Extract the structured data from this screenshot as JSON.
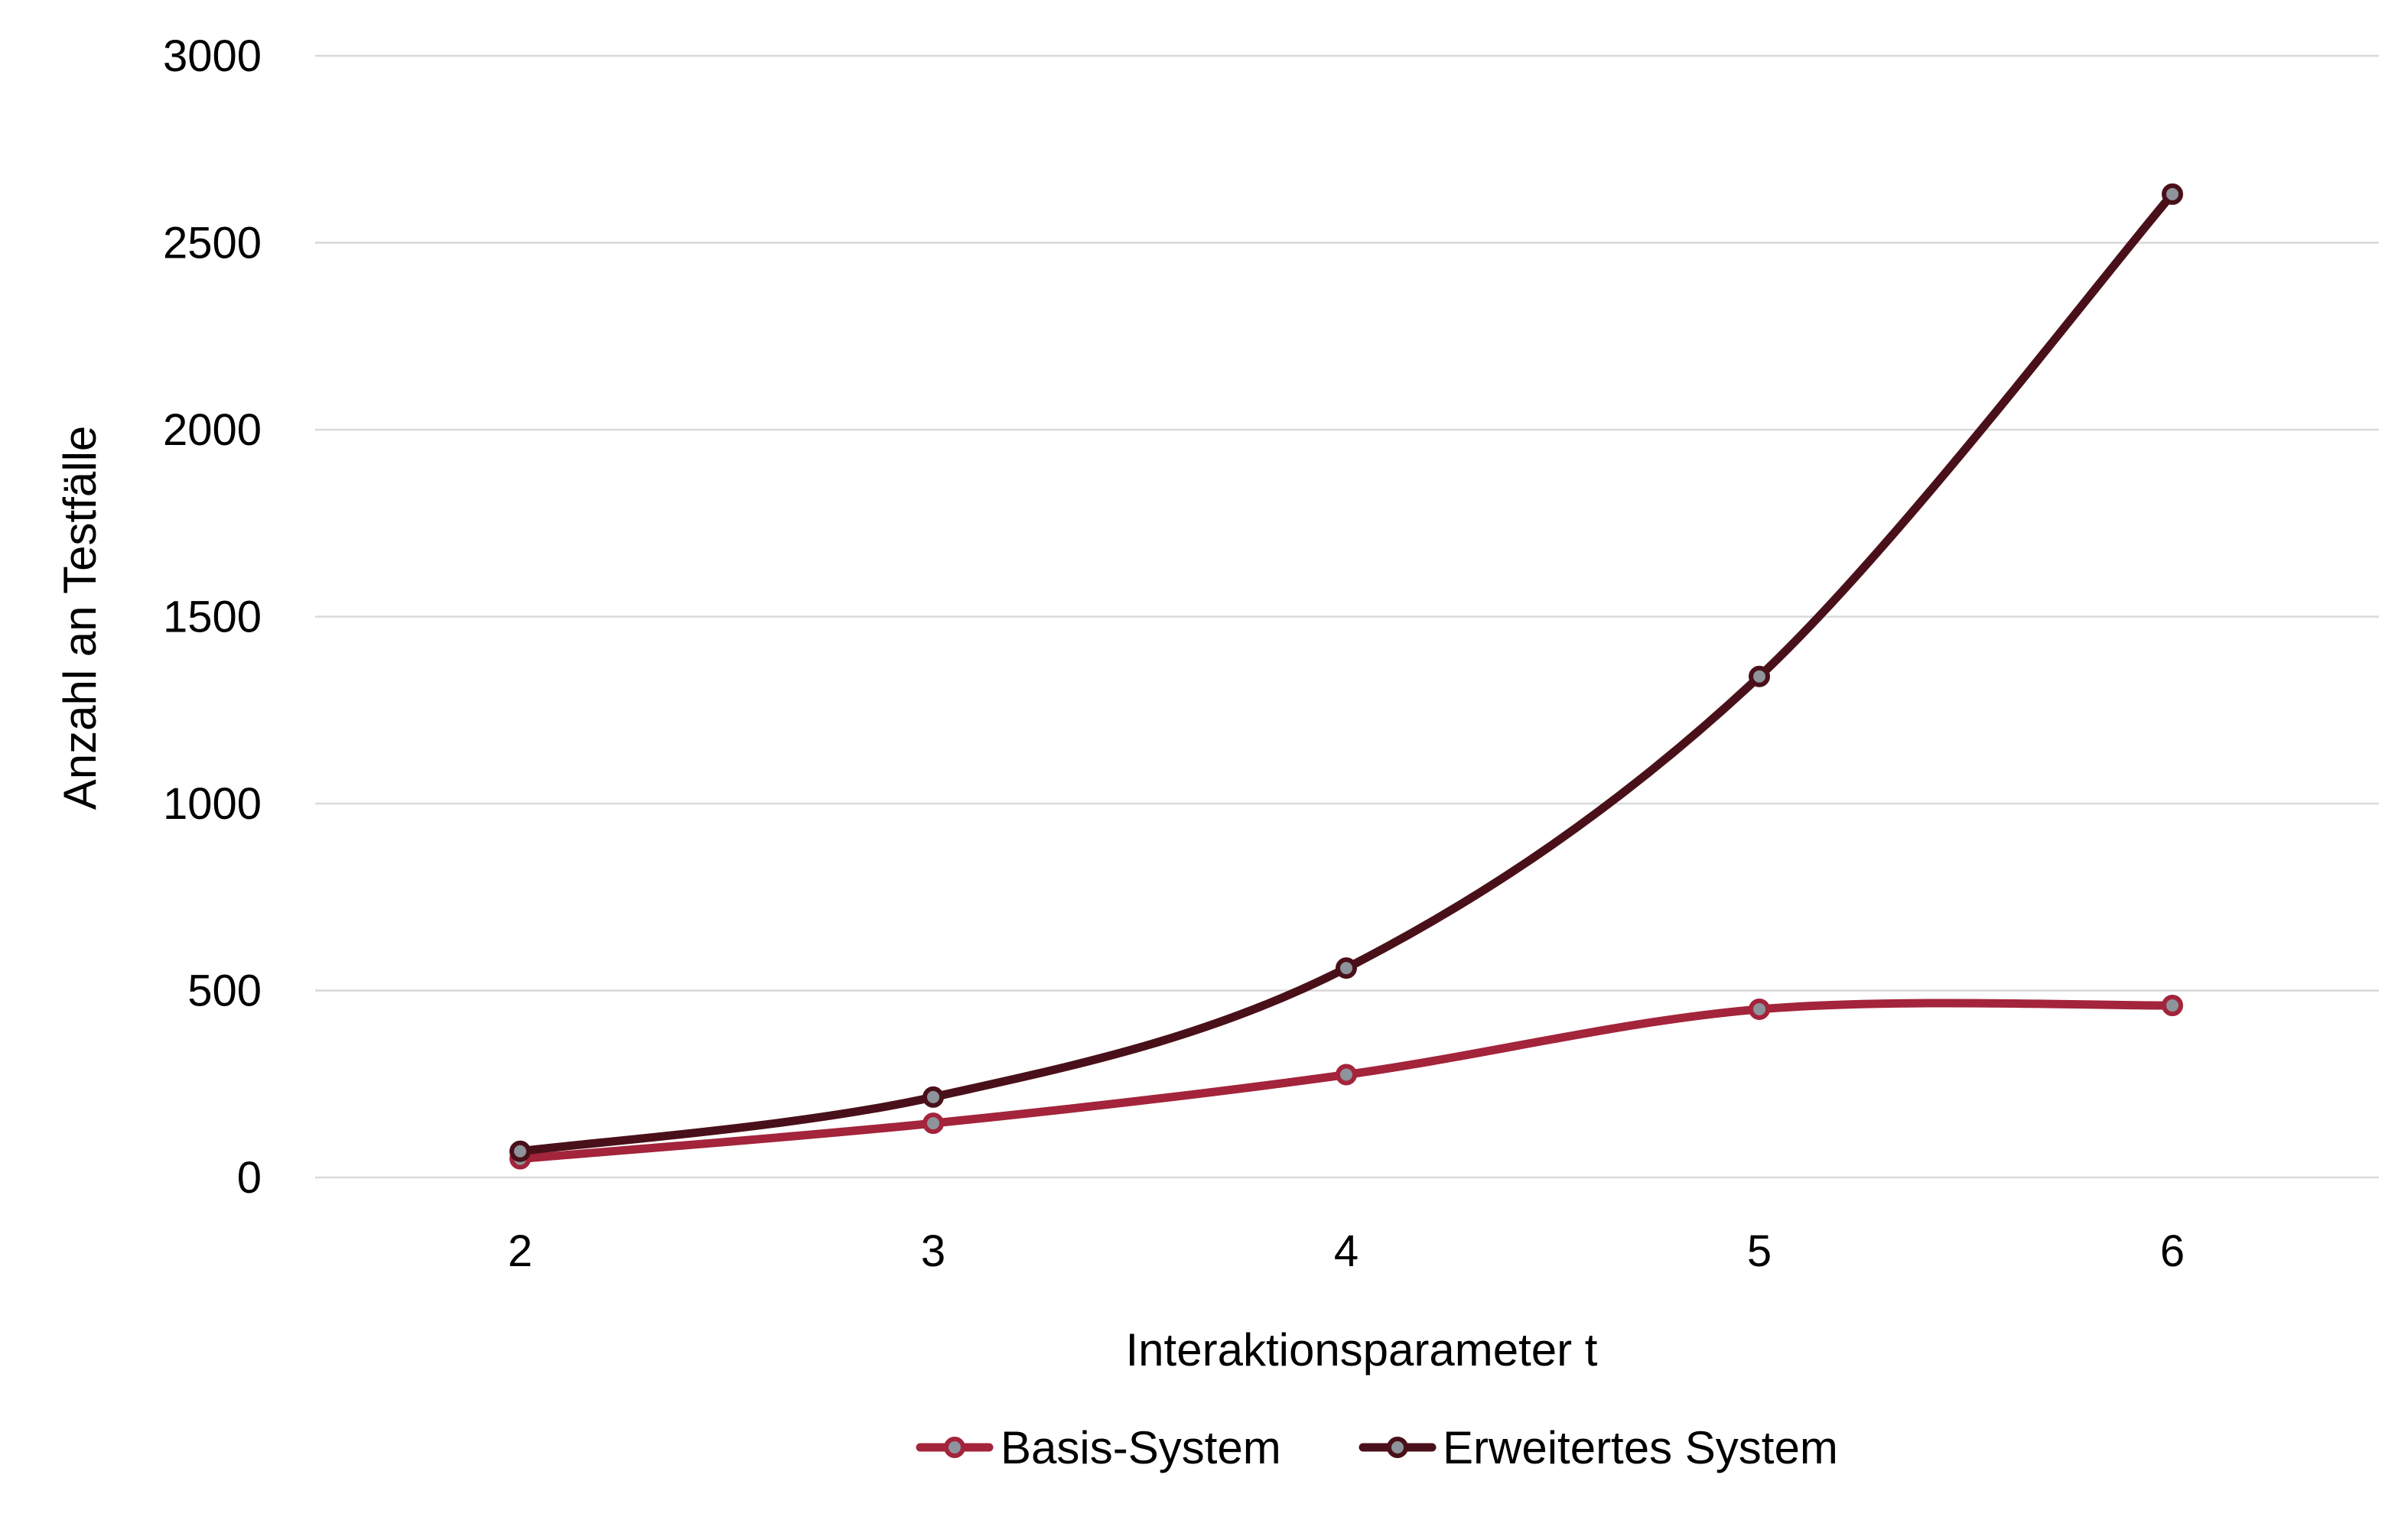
{
  "chart_data": {
    "type": "line",
    "title": "",
    "xlabel": "Interaktionsparameter t",
    "ylabel": "Anzahl an Testfälle",
    "x": [
      "2",
      "3",
      "4",
      "5",
      "6"
    ],
    "ylim": [
      0,
      3000
    ],
    "yticks": [
      "0",
      "500",
      "1000",
      "1500",
      "2000",
      "2500",
      "3000"
    ],
    "grid": true,
    "smooth": true,
    "legend_position": "bottom",
    "series": [
      {
        "name": "Basis-System",
        "values": [
          50,
          145,
          275,
          450,
          460
        ],
        "color": "#a3243b",
        "marker_fill": "#8e949b"
      },
      {
        "name": "Erweitertes System",
        "values": [
          70,
          215,
          560,
          1340,
          2630
        ],
        "color": "#4a1019",
        "marker_fill": "#8e949b"
      }
    ]
  }
}
